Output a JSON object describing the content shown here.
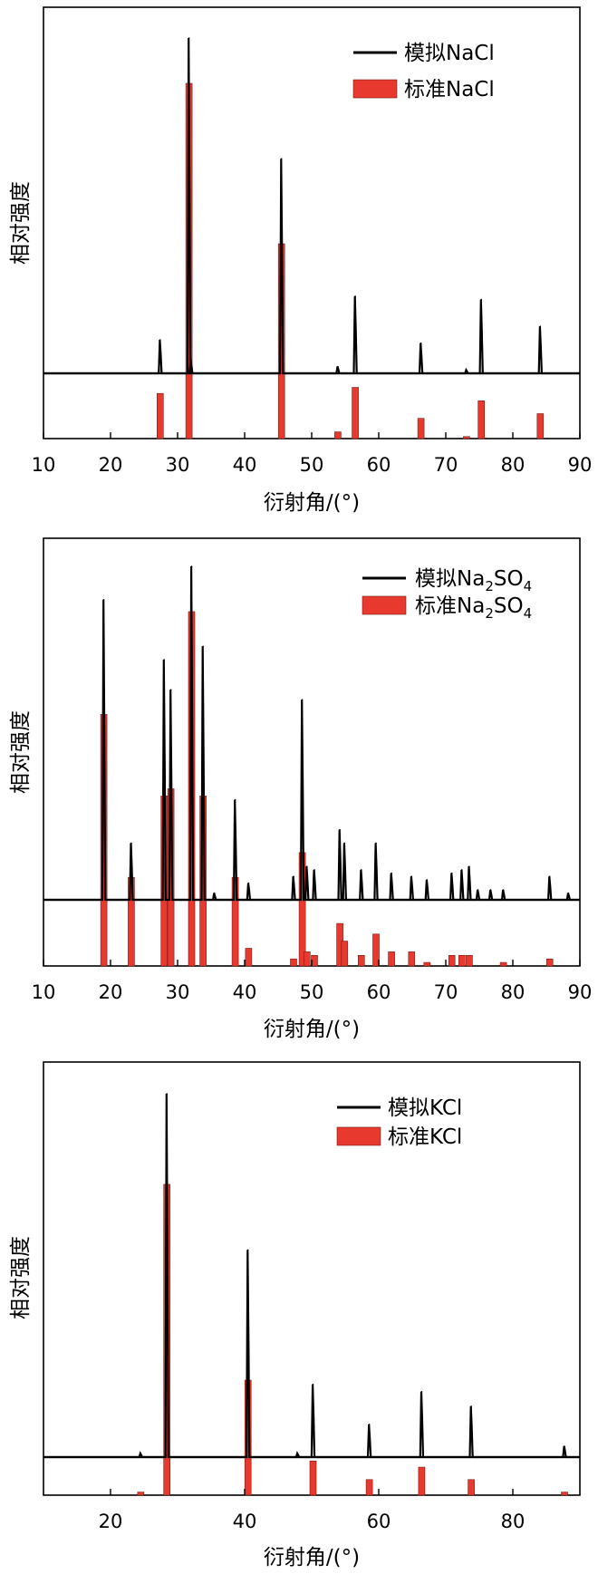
{
  "figure": {
    "panels": [
      {
        "id": "nacl",
        "legend": {
          "simulated": {
            "text": "模拟NaCl"
          },
          "standard": {
            "text": "标准NaCl"
          }
        },
        "xlabel": "衍射角/(°)",
        "ylabel": "相对强度"
      },
      {
        "id": "na2so4",
        "legend": {
          "simulated": {
            "text": "模拟Na",
            "sub1": "2",
            "mid": "SO",
            "sub2": "4"
          },
          "standard": {
            "text": "标准Na",
            "sub1": "2",
            "mid": "SO",
            "sub2": "4"
          }
        },
        "xlabel": "衍射角/(°)",
        "ylabel": "相对强度"
      },
      {
        "id": "kcl",
        "legend": {
          "simulated": {
            "text": "模拟KCl"
          },
          "standard": {
            "text": "标准KCl"
          }
        },
        "xlabel": "衍射角/(°)",
        "ylabel": "相对强度"
      }
    ]
  },
  "colors": {
    "simulated": "#000000",
    "standard": "#e8392f"
  },
  "chart_data": [
    {
      "type": "line",
      "title": "",
      "xlabel": "衍射角/(°)",
      "ylabel": "相对强度",
      "xlim": [
        10,
        90
      ],
      "xticks": [
        10,
        20,
        30,
        40,
        50,
        60,
        70,
        80,
        90
      ],
      "legend_position": "top-right",
      "series": [
        {
          "name": "模拟NaCl",
          "style": "line",
          "peaks": [
            {
              "x": 27.4,
              "y": 10
            },
            {
              "x": 31.7,
              "y": 100
            },
            {
              "x": 32.0,
              "y": 4
            },
            {
              "x": 45.5,
              "y": 64
            },
            {
              "x": 53.9,
              "y": 2
            },
            {
              "x": 56.5,
              "y": 23
            },
            {
              "x": 66.3,
              "y": 9
            },
            {
              "x": 73.1,
              "y": 1
            },
            {
              "x": 75.3,
              "y": 22
            },
            {
              "x": 84.1,
              "y": 14
            }
          ]
        },
        {
          "name": "标准NaCl",
          "style": "bar",
          "peaks": [
            {
              "x": 27.4,
              "y": 67
            },
            {
              "x": 31.7,
              "y": 527
            },
            {
              "x": 45.5,
              "y": 289
            },
            {
              "x": 53.9,
              "y": 10
            },
            {
              "x": 56.5,
              "y": 76
            },
            {
              "x": 66.3,
              "y": 30
            },
            {
              "x": 73.1,
              "y": 3
            },
            {
              "x": 75.3,
              "y": 56
            },
            {
              "x": 84.1,
              "y": 37
            }
          ]
        }
      ]
    },
    {
      "type": "line",
      "title": "",
      "xlabel": "衍射角/(°)",
      "ylabel": "相对强度",
      "xlim": [
        10,
        90
      ],
      "xticks": [
        10,
        20,
        30,
        40,
        50,
        60,
        70,
        80,
        90
      ],
      "legend_position": "top-right",
      "series": [
        {
          "name": "模拟Na2SO4",
          "style": "line",
          "peaks": [
            {
              "x": 19.0,
              "y": 90
            },
            {
              "x": 23.1,
              "y": 17
            },
            {
              "x": 28.0,
              "y": 72
            },
            {
              "x": 29.0,
              "y": 63
            },
            {
              "x": 32.1,
              "y": 100
            },
            {
              "x": 33.8,
              "y": 76
            },
            {
              "x": 35.5,
              "y": 2
            },
            {
              "x": 38.6,
              "y": 30
            },
            {
              "x": 40.6,
              "y": 5
            },
            {
              "x": 47.3,
              "y": 7
            },
            {
              "x": 48.6,
              "y": 60
            },
            {
              "x": 49.3,
              "y": 10
            },
            {
              "x": 50.4,
              "y": 9
            },
            {
              "x": 54.2,
              "y": 21
            },
            {
              "x": 54.9,
              "y": 17
            },
            {
              "x": 57.4,
              "y": 9
            },
            {
              "x": 59.6,
              "y": 17
            },
            {
              "x": 61.9,
              "y": 8
            },
            {
              "x": 64.9,
              "y": 7
            },
            {
              "x": 67.2,
              "y": 6
            },
            {
              "x": 70.9,
              "y": 8
            },
            {
              "x": 72.4,
              "y": 9
            },
            {
              "x": 73.5,
              "y": 10
            },
            {
              "x": 74.8,
              "y": 3
            },
            {
              "x": 76.7,
              "y": 3
            },
            {
              "x": 78.6,
              "y": 3
            },
            {
              "x": 85.5,
              "y": 7
            },
            {
              "x": 88.3,
              "y": 2
            }
          ]
        },
        {
          "name": "标准Na2SO4",
          "style": "bar",
          "peaks": [
            {
              "x": 19.0,
              "y": 71
            },
            {
              "x": 23.1,
              "y": 25
            },
            {
              "x": 28.0,
              "y": 48
            },
            {
              "x": 29.0,
              "y": 50
            },
            {
              "x": 32.1,
              "y": 100
            },
            {
              "x": 33.8,
              "y": 48
            },
            {
              "x": 38.6,
              "y": 25
            },
            {
              "x": 40.6,
              "y": 5
            },
            {
              "x": 47.3,
              "y": 2
            },
            {
              "x": 48.6,
              "y": 32
            },
            {
              "x": 49.3,
              "y": 4
            },
            {
              "x": 50.4,
              "y": 3
            },
            {
              "x": 54.2,
              "y": 12
            },
            {
              "x": 54.9,
              "y": 7
            },
            {
              "x": 57.4,
              "y": 3
            },
            {
              "x": 59.6,
              "y": 9
            },
            {
              "x": 61.9,
              "y": 4
            },
            {
              "x": 64.9,
              "y": 4
            },
            {
              "x": 67.2,
              "y": 1
            },
            {
              "x": 70.9,
              "y": 3
            },
            {
              "x": 72.4,
              "y": 3
            },
            {
              "x": 73.5,
              "y": 3
            },
            {
              "x": 78.6,
              "y": 1
            },
            {
              "x": 85.5,
              "y": 2
            }
          ]
        }
      ]
    },
    {
      "type": "line",
      "title": "",
      "xlabel": "衍射角/(°)",
      "ylabel": "相对强度",
      "xlim": [
        10,
        90
      ],
      "xticks": [
        20,
        40,
        60,
        80
      ],
      "legend_position": "top-right",
      "series": [
        {
          "name": "模拟KCl",
          "style": "line",
          "peaks": [
            {
              "x": 24.5,
              "y": 1
            },
            {
              "x": 28.4,
              "y": 100
            },
            {
              "x": 40.5,
              "y": 57
            },
            {
              "x": 47.9,
              "y": 1
            },
            {
              "x": 50.2,
              "y": 20
            },
            {
              "x": 58.6,
              "y": 9
            },
            {
              "x": 66.4,
              "y": 18
            },
            {
              "x": 73.8,
              "y": 14
            },
            {
              "x": 87.7,
              "y": 3
            }
          ]
        },
        {
          "name": "标准KCl",
          "style": "bar",
          "peaks": [
            {
              "x": 24.5,
              "y": 1
            },
            {
              "x": 28.4,
              "y": 100
            },
            {
              "x": 40.5,
              "y": 37
            },
            {
              "x": 50.2,
              "y": 11
            },
            {
              "x": 58.6,
              "y": 5
            },
            {
              "x": 66.4,
              "y": 9
            },
            {
              "x": 73.8,
              "y": 5
            },
            {
              "x": 87.7,
              "y": 1
            }
          ]
        }
      ]
    }
  ]
}
